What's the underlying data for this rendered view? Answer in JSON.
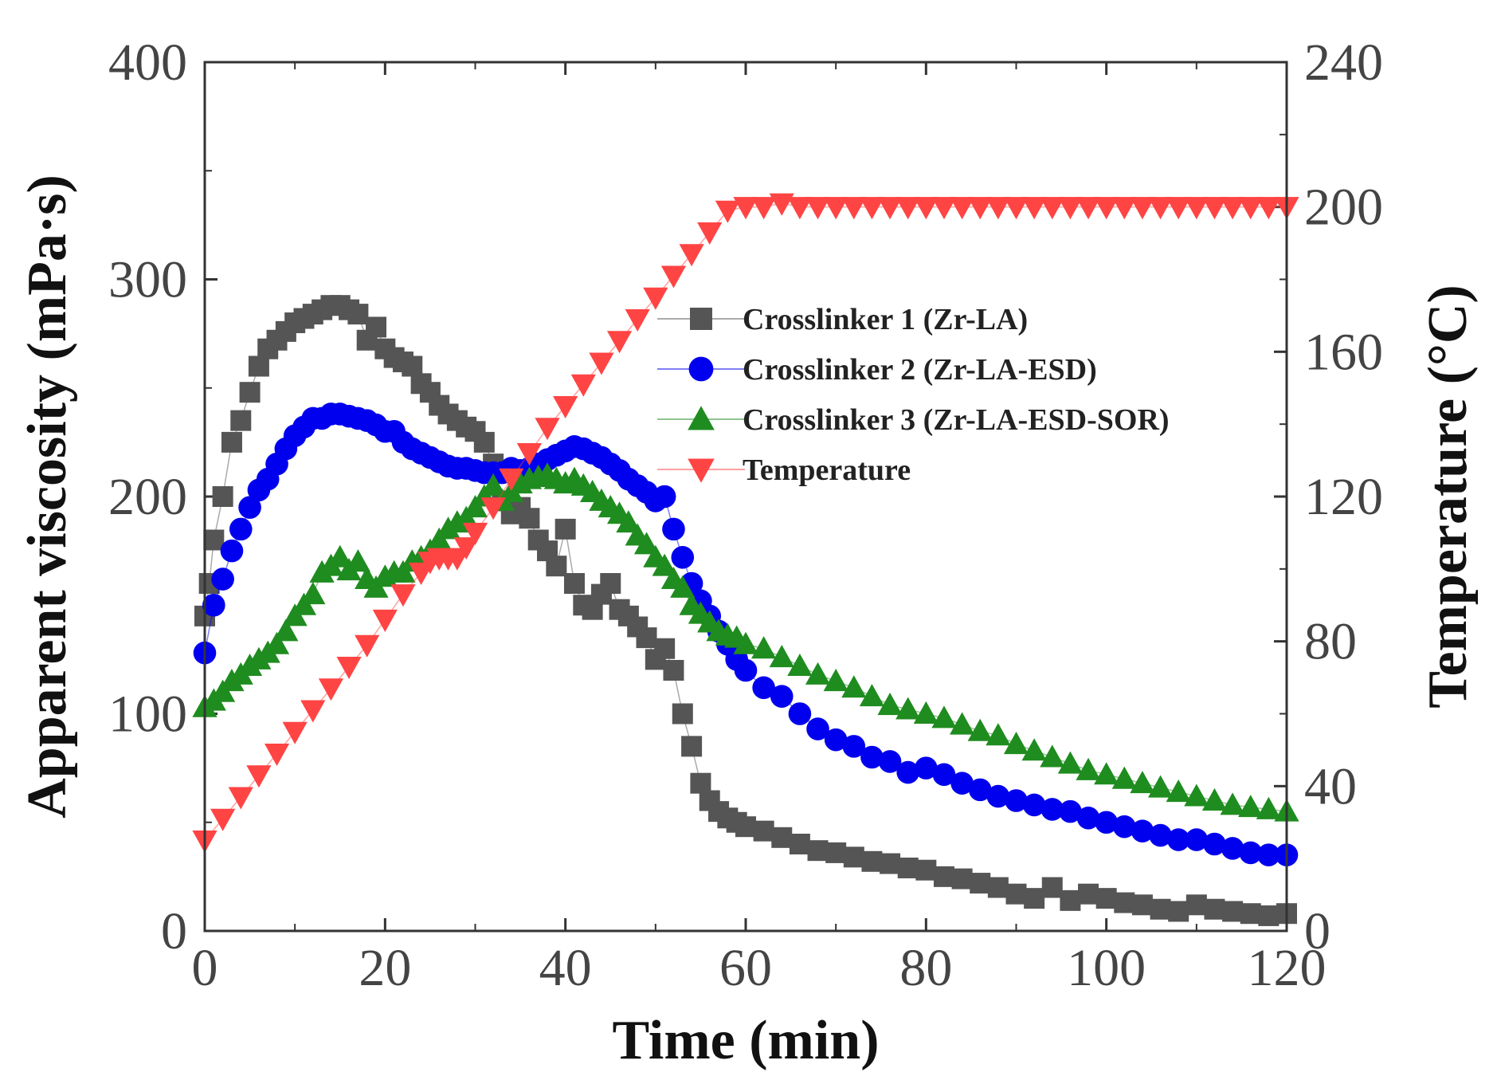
{
  "chart_data": {
    "type": "scatter",
    "xlabel": "Time (min)",
    "ylabel": "Apparent viscosity (mPa·s)",
    "y2label": "Temperature (°C)",
    "xlim": [
      0,
      120
    ],
    "ylim": [
      0,
      400
    ],
    "y2lim": [
      0,
      240
    ],
    "x_ticks": [
      "0",
      "20",
      "40",
      "60",
      "80",
      "100",
      "120"
    ],
    "y_ticks": [
      "0",
      "100",
      "200",
      "300",
      "400"
    ],
    "y2_ticks": [
      "0",
      "40",
      "80",
      "120",
      "160",
      "200",
      "240"
    ],
    "legend_position": "center-right",
    "series": [
      {
        "name": "Crosslinker 1 (Zr-LA)",
        "axis": "left",
        "marker": "square",
        "color": "#555555",
        "x": [
          0,
          0.5,
          1,
          2,
          3,
          4,
          5,
          6,
          7,
          8,
          9,
          10,
          11,
          12,
          13,
          14,
          15,
          16,
          17,
          18,
          19,
          20,
          21,
          22,
          23,
          24,
          25,
          26,
          27,
          28,
          29,
          30,
          31,
          32,
          33,
          34,
          35,
          36,
          37,
          38,
          39,
          40,
          41,
          42,
          43,
          44,
          45,
          46,
          47,
          48,
          49,
          50,
          51,
          52,
          53,
          54,
          55,
          56,
          57,
          58,
          59,
          60,
          62,
          64,
          66,
          68,
          70,
          72,
          74,
          76,
          78,
          80,
          82,
          84,
          86,
          88,
          90,
          92,
          94,
          96,
          98,
          100,
          102,
          104,
          106,
          108,
          110,
          112,
          114,
          116,
          118,
          120
        ],
        "y": [
          145,
          160,
          180,
          200,
          225,
          235,
          248,
          260,
          268,
          272,
          276,
          280,
          282,
          284,
          286,
          288,
          288,
          286,
          284,
          272,
          278,
          268,
          264,
          262,
          260,
          252,
          248,
          242,
          238,
          235,
          232,
          230,
          225,
          215,
          198,
          192,
          195,
          190,
          180,
          175,
          168,
          185,
          160,
          150,
          148,
          155,
          160,
          148,
          145,
          140,
          135,
          125,
          130,
          120,
          100,
          85,
          68,
          60,
          55,
          52,
          50,
          48,
          46,
          43,
          40,
          37,
          36,
          34,
          32,
          31,
          29,
          28,
          25,
          24,
          22,
          20,
          17,
          15,
          20,
          14,
          17,
          15,
          13,
          12,
          10,
          9,
          12,
          10,
          9,
          8,
          7,
          8
        ]
      },
      {
        "name": "Crosslinker 2 (Zr-LA-ESD)",
        "axis": "left",
        "marker": "circle",
        "color": "#0000ee",
        "x": [
          0,
          1,
          2,
          3,
          4,
          5,
          6,
          7,
          8,
          9,
          10,
          11,
          12,
          13,
          14,
          15,
          16,
          17,
          18,
          19,
          20,
          21,
          22,
          23,
          24,
          25,
          26,
          27,
          28,
          29,
          30,
          31,
          32,
          33,
          34,
          35,
          36,
          37,
          38,
          39,
          40,
          41,
          42,
          43,
          44,
          45,
          46,
          47,
          48,
          49,
          50,
          51,
          52,
          53,
          54,
          55,
          56,
          57,
          58,
          59,
          60,
          62,
          64,
          66,
          68,
          70,
          72,
          74,
          76,
          78,
          80,
          82,
          84,
          86,
          88,
          90,
          92,
          94,
          96,
          98,
          100,
          102,
          104,
          106,
          108,
          110,
          112,
          114,
          116,
          118,
          120
        ],
        "y": [
          128,
          150,
          162,
          175,
          185,
          195,
          203,
          208,
          215,
          222,
          228,
          232,
          236,
          236,
          238,
          238,
          237,
          236,
          235,
          233,
          230,
          230,
          225,
          222,
          220,
          218,
          216,
          214,
          213,
          213,
          212,
          211,
          211,
          211,
          213,
          212,
          213,
          215,
          217,
          219,
          221,
          223,
          222,
          220,
          218,
          215,
          212,
          208,
          205,
          202,
          198,
          200,
          185,
          172,
          160,
          152,
          145,
          138,
          132,
          125,
          120,
          112,
          108,
          100,
          93,
          88,
          85,
          80,
          78,
          73,
          75,
          72,
          68,
          65,
          62,
          60,
          58,
          56,
          55,
          52,
          50,
          48,
          46,
          44,
          42,
          42,
          40,
          38,
          36,
          35,
          35
        ]
      },
      {
        "name": "Crosslinker 3 (Zr-LA-ESD-SOR)",
        "axis": "left",
        "marker": "triangle-up",
        "color": "#1f8c1f",
        "x": [
          0,
          1,
          2,
          3,
          4,
          5,
          6,
          7,
          8,
          9,
          10,
          11,
          12,
          13,
          14,
          15,
          16,
          17,
          18,
          19,
          20,
          21,
          22,
          23,
          24,
          25,
          26,
          27,
          28,
          29,
          30,
          31,
          32,
          33,
          34,
          35,
          36,
          37,
          38,
          39,
          40,
          41,
          42,
          43,
          44,
          45,
          46,
          47,
          48,
          49,
          50,
          51,
          52,
          53,
          54,
          55,
          56,
          57,
          58,
          59,
          60,
          62,
          64,
          66,
          68,
          70,
          72,
          74,
          76,
          78,
          80,
          82,
          84,
          86,
          88,
          90,
          92,
          94,
          96,
          98,
          100,
          102,
          104,
          106,
          108,
          110,
          112,
          114,
          116,
          118,
          120
        ],
        "y": [
          103,
          106,
          110,
          115,
          118,
          122,
          125,
          128,
          132,
          138,
          145,
          150,
          155,
          165,
          168,
          172,
          166,
          170,
          162,
          158,
          163,
          165,
          165,
          170,
          172,
          175,
          180,
          185,
          188,
          190,
          195,
          200,
          205,
          198,
          202,
          206,
          208,
          209,
          210,
          208,
          206,
          208,
          205,
          202,
          198,
          195,
          192,
          188,
          182,
          178,
          172,
          168,
          162,
          158,
          150,
          146,
          142,
          138,
          136,
          135,
          132,
          130,
          126,
          122,
          118,
          115,
          112,
          108,
          104,
          102,
          100,
          98,
          95,
          92,
          90,
          86,
          83,
          80,
          77,
          74,
          72,
          70,
          68,
          66,
          64,
          62,
          60,
          58,
          57,
          56,
          55
        ]
      },
      {
        "name": "Temperature",
        "axis": "right",
        "marker": "triangle-down",
        "color": "#ff4444",
        "x": [
          0,
          2,
          4,
          6,
          8,
          10,
          12,
          14,
          16,
          18,
          20,
          22,
          24,
          25,
          26,
          27,
          28,
          29,
          30,
          32,
          34,
          36,
          38,
          40,
          42,
          44,
          46,
          48,
          50,
          52,
          54,
          56,
          58,
          60,
          62,
          64,
          66,
          68,
          70,
          72,
          74,
          76,
          78,
          80,
          82,
          84,
          86,
          88,
          90,
          92,
          94,
          96,
          98,
          100,
          102,
          104,
          106,
          108,
          110,
          112,
          114,
          116,
          118,
          120
        ],
        "y": [
          25,
          31,
          37,
          43,
          49,
          55,
          61,
          67,
          73,
          79,
          86,
          93,
          99,
          102,
          103,
          103,
          103,
          106,
          110,
          117,
          125,
          132,
          139,
          145,
          151,
          157,
          163,
          169,
          175,
          181,
          187,
          193,
          199,
          200,
          200,
          201,
          200,
          200,
          200,
          200,
          200,
          200,
          200,
          200,
          200,
          200,
          200,
          200,
          200,
          200,
          200,
          200,
          200,
          200,
          200,
          200,
          200,
          200,
          200,
          200,
          200,
          200,
          200,
          200
        ]
      }
    ]
  }
}
